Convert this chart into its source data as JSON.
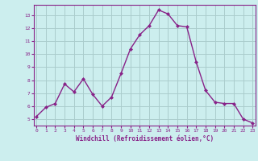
{
  "x": [
    0,
    1,
    2,
    3,
    4,
    5,
    6,
    7,
    8,
    9,
    10,
    11,
    12,
    13,
    14,
    15,
    16,
    17,
    18,
    19,
    20,
    21,
    22,
    23
  ],
  "y": [
    5.2,
    5.9,
    6.2,
    7.7,
    7.1,
    8.1,
    6.9,
    6.0,
    6.7,
    8.5,
    10.4,
    11.5,
    12.2,
    13.4,
    13.1,
    12.2,
    12.1,
    9.4,
    7.2,
    6.3,
    6.2,
    6.2,
    5.0,
    4.7
  ],
  "line_color": "#882288",
  "marker_color": "#882288",
  "bg_color": "#cceeee",
  "grid_color": "#aacccc",
  "axis_color": "#882288",
  "tick_color": "#882288",
  "xlabel": "Windchill (Refroidissement éolien,°C)",
  "xlabel_color": "#882288",
  "ylim": [
    4.5,
    13.8
  ],
  "yticks": [
    5,
    6,
    7,
    8,
    9,
    10,
    11,
    12,
    13
  ],
  "xticks": [
    0,
    1,
    2,
    3,
    4,
    5,
    6,
    7,
    8,
    9,
    10,
    11,
    12,
    13,
    14,
    15,
    16,
    17,
    18,
    19,
    20,
    21,
    22,
    23
  ],
  "xtick_labels": [
    "0",
    "1",
    "2",
    "3",
    "4",
    "5",
    "6",
    "7",
    "8",
    "9",
    "10",
    "11",
    "12",
    "13",
    "14",
    "15",
    "16",
    "17",
    "18",
    "19",
    "20",
    "21",
    "22",
    "23"
  ],
  "xlim": [
    -0.3,
    23.3
  ]
}
